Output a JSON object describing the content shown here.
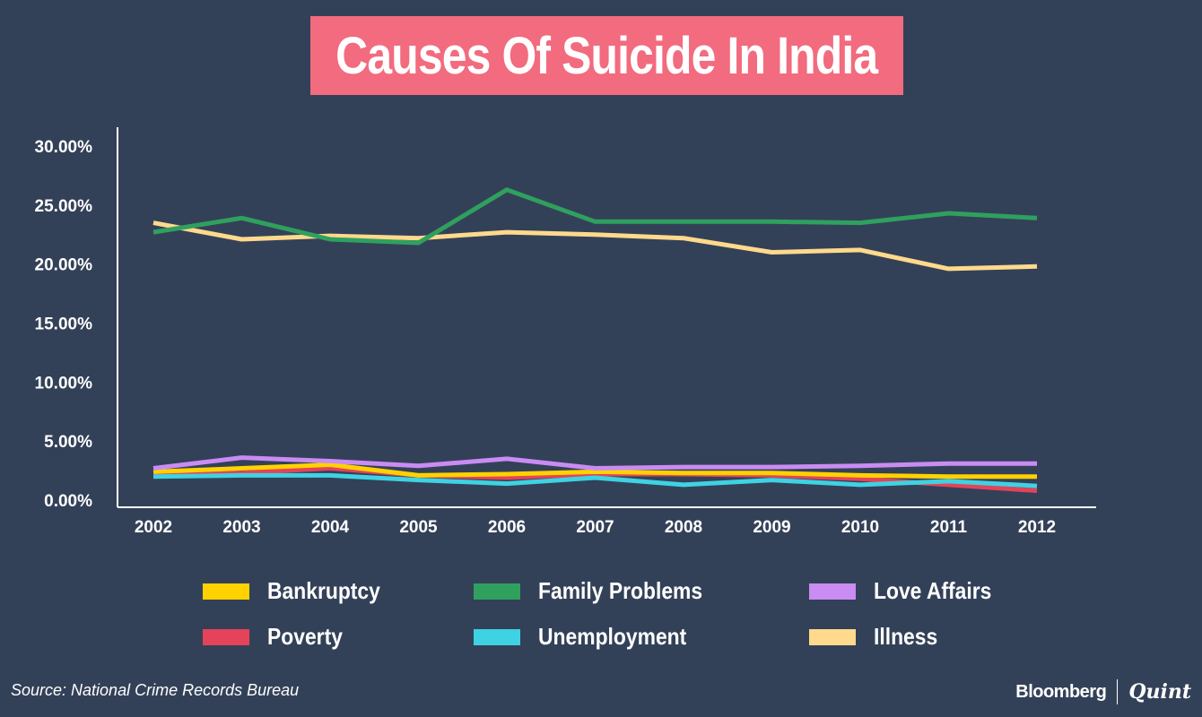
{
  "header": {
    "title": "Causes Of Suicide In India"
  },
  "footer": {
    "source": "Source: National Crime Records Bureau",
    "brand_primary": "Bloomberg",
    "brand_secondary": "Quint"
  },
  "chart_data": {
    "type": "line",
    "title": "Causes Of Suicide In India",
    "xlabel": "",
    "ylabel": "",
    "x": [
      "2002",
      "2003",
      "2004",
      "2005",
      "2006",
      "2007",
      "2008",
      "2009",
      "2010",
      "2011",
      "2012"
    ],
    "ylim": [
      0,
      30
    ],
    "yticks": [
      "0.00%",
      "5.00%",
      "10.00%",
      "15.00%",
      "20.00%",
      "25.00%",
      "30.00%"
    ],
    "grid": false,
    "legend_position": "bottom",
    "series": [
      {
        "name": "Bankruptcy",
        "color": "#ffd200",
        "values": [
          2.4,
          2.7,
          3.0,
          2.1,
          2.2,
          2.4,
          2.3,
          2.3,
          2.1,
          2.0,
          2.0
        ]
      },
      {
        "name": "Family Problems",
        "color": "#2fa05e",
        "values": [
          22.7,
          23.9,
          22.1,
          21.8,
          26.3,
          23.6,
          23.6,
          23.6,
          23.5,
          24.3,
          23.9
        ]
      },
      {
        "name": "Love Affairs",
        "color": "#c98cf2",
        "values": [
          2.7,
          3.6,
          3.3,
          2.9,
          3.5,
          2.7,
          2.8,
          2.8,
          2.9,
          3.1,
          3.1
        ]
      },
      {
        "name": "Poverty",
        "color": "#e4435a",
        "values": [
          2.1,
          2.3,
          2.7,
          2.1,
          1.9,
          2.2,
          2.2,
          2.1,
          1.8,
          1.3,
          0.8
        ]
      },
      {
        "name": "Unemployment",
        "color": "#3fd2e2",
        "values": [
          2.0,
          2.1,
          2.1,
          1.7,
          1.4,
          1.9,
          1.3,
          1.7,
          1.3,
          1.6,
          1.2
        ]
      },
      {
        "name": "Illness",
        "color": "#ffd98c",
        "values": [
          23.5,
          22.1,
          22.4,
          22.2,
          22.7,
          22.5,
          22.2,
          21.0,
          21.2,
          19.6,
          19.8
        ]
      }
    ]
  }
}
